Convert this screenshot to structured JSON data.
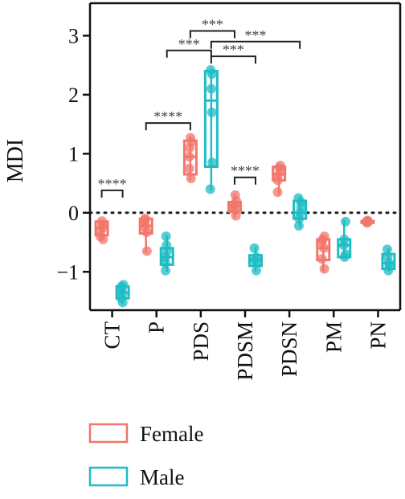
{
  "chart_data": {
    "type": "box",
    "ylabel": "MDI",
    "ylim": [
      -1.65,
      3.55
    ],
    "yticks": [
      -1,
      0,
      1,
      2,
      3
    ],
    "ytick_labels": [
      "−1",
      "0",
      "1",
      "2",
      "3"
    ],
    "reference_line_y": 0,
    "categories": [
      "CT",
      "P",
      "PDS",
      "PDSM",
      "PDSN",
      "PM",
      "PN"
    ],
    "series": [
      {
        "name": "Female",
        "color": "#f2766b",
        "boxes": [
          {
            "min": -0.48,
            "q1": -0.38,
            "median": -0.25,
            "q3": -0.15,
            "max": -0.12,
            "points": [
              -0.45,
              -0.4,
              -0.32,
              -0.25,
              -0.2,
              -0.14
            ]
          },
          {
            "min": -0.68,
            "q1": -0.35,
            "median": -0.22,
            "q3": -0.1,
            "max": -0.08,
            "points": [
              -0.65,
              -0.33,
              -0.25,
              -0.18,
              -0.12,
              -0.1
            ]
          },
          {
            "min": 0.55,
            "q1": 0.65,
            "median": 0.95,
            "q3": 1.22,
            "max": 1.3,
            "points": [
              0.58,
              0.75,
              0.95,
              1.1,
              1.2,
              1.27
            ]
          },
          {
            "min": -0.08,
            "q1": 0.02,
            "median": 0.12,
            "q3": 0.18,
            "max": 0.32,
            "points": [
              -0.05,
              0.05,
              0.1,
              0.14,
              0.2,
              0.3
            ]
          },
          {
            "min": 0.3,
            "q1": 0.55,
            "median": 0.65,
            "q3": 0.78,
            "max": 0.82,
            "points": [
              0.35,
              0.55,
              0.62,
              0.7,
              0.76,
              0.8
            ]
          },
          {
            "min": -1.0,
            "q1": -0.8,
            "median": -0.6,
            "q3": -0.45,
            "max": -0.38,
            "points": [
              -0.95,
              -0.78,
              -0.6,
              -0.5,
              -0.45,
              -0.4
            ]
          },
          {
            "min": -0.18,
            "q1": -0.17,
            "median": -0.16,
            "q3": -0.14,
            "max": -0.12,
            "points": [
              -0.17,
              -0.16,
              -0.15,
              -0.14,
              -0.13
            ]
          }
        ]
      },
      {
        "name": "Male",
        "color": "#1fbcc4",
        "boxes": [
          {
            "min": -1.55,
            "q1": -1.45,
            "median": -1.35,
            "q3": -1.25,
            "max": -1.2,
            "points": [
              -1.52,
              -1.45,
              -1.38,
              -1.3,
              -1.25,
              -1.22
            ]
          },
          {
            "min": -1.0,
            "q1": -0.88,
            "median": -0.75,
            "q3": -0.6,
            "max": -0.38,
            "points": [
              -0.98,
              -0.85,
              -0.75,
              -0.65,
              -0.55,
              -0.4
            ]
          },
          {
            "min": 0.38,
            "q1": 0.78,
            "median": 1.9,
            "q3": 2.4,
            "max": 2.45,
            "points": [
              0.4,
              0.85,
              1.7,
              2.1,
              2.35,
              2.42
            ]
          },
          {
            "min": -1.0,
            "q1": -0.9,
            "median": -0.8,
            "q3": -0.72,
            "max": -0.58,
            "points": [
              -0.98,
              -0.85,
              -0.8,
              -0.75,
              -0.6
            ]
          },
          {
            "min": -0.25,
            "q1": -0.1,
            "median": 0.0,
            "q3": 0.2,
            "max": 0.28,
            "points": [
              -0.22,
              -0.1,
              0.0,
              0.1,
              0.18,
              0.25
            ]
          },
          {
            "min": -0.78,
            "q1": -0.75,
            "median": -0.55,
            "q3": -0.45,
            "max": -0.12,
            "points": [
              -0.75,
              -0.7,
              -0.55,
              -0.45,
              -0.15
            ]
          },
          {
            "min": -1.0,
            "q1": -0.95,
            "median": -0.85,
            "q3": -0.7,
            "max": -0.6,
            "points": [
              -0.98,
              -0.9,
              -0.85,
              -0.75,
              -0.62
            ]
          }
        ]
      }
    ],
    "significance": [
      {
        "label": "****",
        "from": {
          "category": "CT",
          "series": "Female"
        },
        "to": {
          "category": "CT",
          "series": "Male"
        },
        "y": 0.38
      },
      {
        "label": "****",
        "from": {
          "category": "P",
          "series": "Female"
        },
        "to": {
          "category": "PDS",
          "series": "Female"
        },
        "y": 1.52
      },
      {
        "label": "***",
        "from": {
          "category": "P",
          "series": "Male"
        },
        "to": {
          "category": "PDS",
          "series": "Male"
        },
        "y": 2.75
      },
      {
        "label": "***",
        "from": {
          "category": "PDS",
          "series": "Female"
        },
        "to": {
          "category": "PDSM",
          "series": "Female"
        },
        "y": 3.08
      },
      {
        "label": "***",
        "from": {
          "category": "PDS",
          "series": "Male"
        },
        "to": {
          "category": "PDSN",
          "series": "Male"
        },
        "y": 2.9
      },
      {
        "label": "***",
        "from": {
          "category": "PDS",
          "series": "Male"
        },
        "to": {
          "category": "PDSM",
          "series": "Male"
        },
        "y": 2.65
      },
      {
        "label": "****",
        "from": {
          "category": "PDSM",
          "series": "Female"
        },
        "to": {
          "category": "PDSM",
          "series": "Male"
        },
        "y": 0.6
      }
    ],
    "legend": {
      "placement": "bottom-left",
      "entries": [
        "Female",
        "Male"
      ]
    },
    "grid": false
  }
}
